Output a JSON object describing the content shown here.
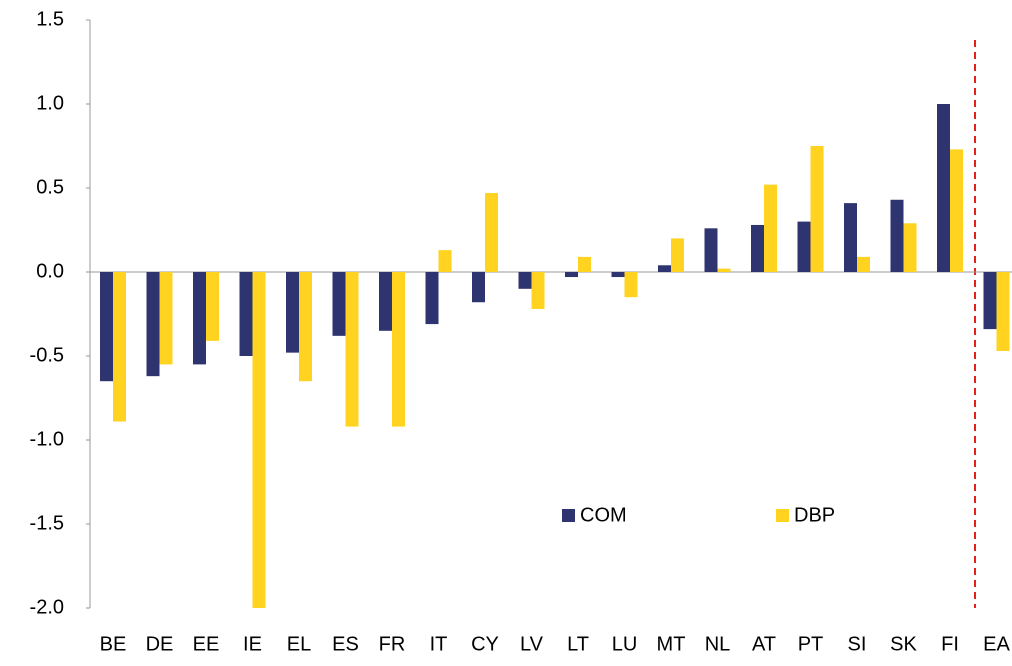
{
  "chart_data": {
    "type": "bar",
    "categories": [
      "BE",
      "DE",
      "EE",
      "IE",
      "EL",
      "ES",
      "FR",
      "IT",
      "CY",
      "LV",
      "LT",
      "LU",
      "MT",
      "NL",
      "AT",
      "PT",
      "SI",
      "SK",
      "FI",
      "EA"
    ],
    "series": [
      {
        "name": "COM",
        "color": "#2e3470",
        "values": [
          -0.65,
          -0.62,
          -0.55,
          -0.5,
          -0.48,
          -0.38,
          -0.35,
          -0.31,
          -0.18,
          -0.1,
          -0.03,
          -0.03,
          0.04,
          0.26,
          0.28,
          0.3,
          0.41,
          0.43,
          1.0,
          -0.34
        ]
      },
      {
        "name": "DBP",
        "color": "#ffd320",
        "values": [
          -0.89,
          -0.55,
          -0.41,
          -2.0,
          -0.65,
          -0.92,
          -0.92,
          0.13,
          0.47,
          -0.22,
          0.09,
          -0.15,
          0.2,
          0.02,
          0.52,
          0.75,
          0.09,
          0.29,
          0.73,
          -0.47
        ]
      }
    ],
    "ylim": [
      -2.0,
      1.5
    ],
    "yticks": [
      {
        "value": -2.0,
        "label": "-2.0"
      },
      -1.5,
      {
        "value": -1.0,
        "label": "-1.0"
      },
      -0.5,
      {
        "value": 0.0,
        "label": "0.0"
      },
      0.5,
      {
        "value": 1.0,
        "label": "1.0"
      },
      1.5
    ],
    "grid": false
  }
}
